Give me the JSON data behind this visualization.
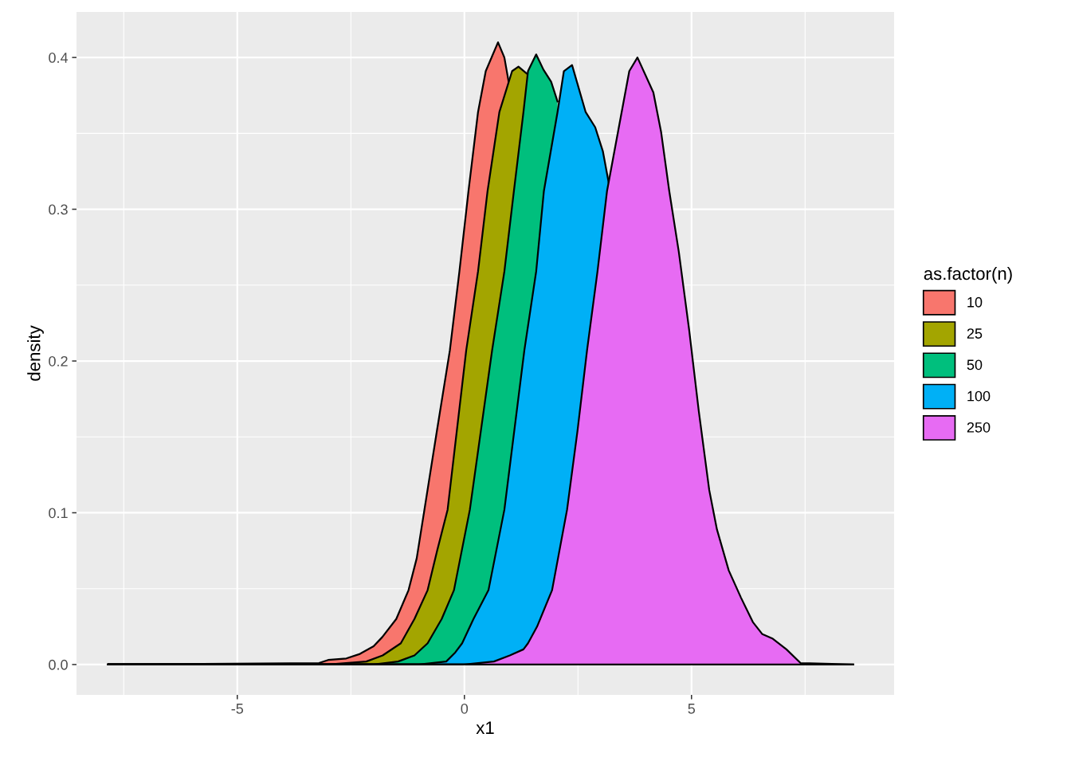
{
  "chart_data": {
    "type": "area",
    "xlabel": "x1",
    "ylabel": "density",
    "legend_title": "as.factor(n)",
    "legend": "right",
    "grid": true,
    "xlim": [
      -8.54,
      9.46
    ],
    "ylim": [
      -0.02,
      0.43
    ],
    "xticks": [
      -5,
      0,
      5
    ],
    "yticks": [
      {
        "value": 0,
        "label": "0.0"
      },
      {
        "value": 0.1,
        "label": "0.1"
      },
      {
        "value": 0.2,
        "label": "0.2"
      },
      {
        "value": 0.3,
        "label": "0.3"
      },
      {
        "value": 0.4,
        "label": "0.4"
      }
    ],
    "series": [
      {
        "name": "10",
        "color": "#f8766d",
        "x": [
          -7.84,
          -3.2,
          -3.0,
          -2.6,
          -2.3,
          -2.0,
          -1.81,
          -1.5,
          -1.23,
          -1.05,
          -0.88,
          -0.6,
          -0.32,
          -0.11,
          0.09,
          0.3,
          0.47,
          0.74,
          0.88,
          0.98
        ],
        "values": [
          0,
          0.001,
          0.003,
          0.004,
          0.007,
          0.012,
          0.018,
          0.03,
          0.049,
          0.07,
          0.102,
          0.155,
          0.207,
          0.259,
          0.312,
          0.364,
          0.391,
          0.41,
          0.4,
          0.383
        ]
      },
      {
        "name": "25",
        "color": "#a3a500",
        "x": [
          -7.84,
          -3.0,
          -2.16,
          -1.8,
          -1.4,
          -1.1,
          -0.81,
          -0.6,
          -0.37,
          0.04,
          0.3,
          0.51,
          0.77,
          1.05,
          1.19,
          1.39
        ],
        "values": [
          0,
          0,
          0.002,
          0.006,
          0.014,
          0.03,
          0.049,
          0.075,
          0.102,
          0.207,
          0.259,
          0.312,
          0.364,
          0.391,
          0.394,
          0.389
        ]
      },
      {
        "name": "50",
        "color": "#00bf7d",
        "x": [
          -7.84,
          -2.0,
          -1.46,
          -1.1,
          -0.81,
          -0.5,
          -0.23,
          0.12,
          0.61,
          0.88,
          1.09,
          1.3,
          1.4,
          1.58,
          1.74,
          1.91,
          2.05
        ],
        "values": [
          0,
          0,
          0.002,
          0.006,
          0.014,
          0.03,
          0.049,
          0.102,
          0.207,
          0.259,
          0.312,
          0.364,
          0.391,
          0.402,
          0.392,
          0.384,
          0.371
        ]
      },
      {
        "name": "100",
        "color": "#00b0f6",
        "x": [
          -7.84,
          -1.0,
          -0.4,
          -0.2,
          -0.05,
          0.2,
          0.53,
          0.88,
          1.32,
          1.58,
          1.75,
          2.05,
          2.19,
          2.37,
          2.67,
          2.88,
          3.05,
          3.18
        ],
        "values": [
          0,
          0,
          0.002,
          0.008,
          0.014,
          0.03,
          0.049,
          0.102,
          0.207,
          0.259,
          0.312,
          0.364,
          0.391,
          0.395,
          0.364,
          0.354,
          0.338,
          0.317
        ]
      },
      {
        "name": "250",
        "color": "#e76bf3",
        "x": [
          -7.84,
          0.0,
          0.65,
          1.0,
          1.3,
          1.4,
          1.6,
          1.93,
          2.26,
          2.49,
          2.7,
          2.93,
          3.14,
          3.4,
          3.63,
          3.81,
          4.16,
          4.33,
          4.51,
          4.72,
          4.95,
          5.16,
          5.39,
          5.56,
          5.82,
          6.09,
          6.35,
          6.56,
          6.79,
          7.09,
          7.4,
          8.56
        ],
        "values": [
          0,
          0,
          0.002,
          0.006,
          0.01,
          0.014,
          0.025,
          0.049,
          0.102,
          0.154,
          0.207,
          0.259,
          0.312,
          0.354,
          0.391,
          0.4,
          0.377,
          0.351,
          0.312,
          0.272,
          0.22,
          0.167,
          0.115,
          0.089,
          0.062,
          0.044,
          0.028,
          0.02,
          0.017,
          0.01,
          0.001,
          0
        ]
      }
    ]
  }
}
